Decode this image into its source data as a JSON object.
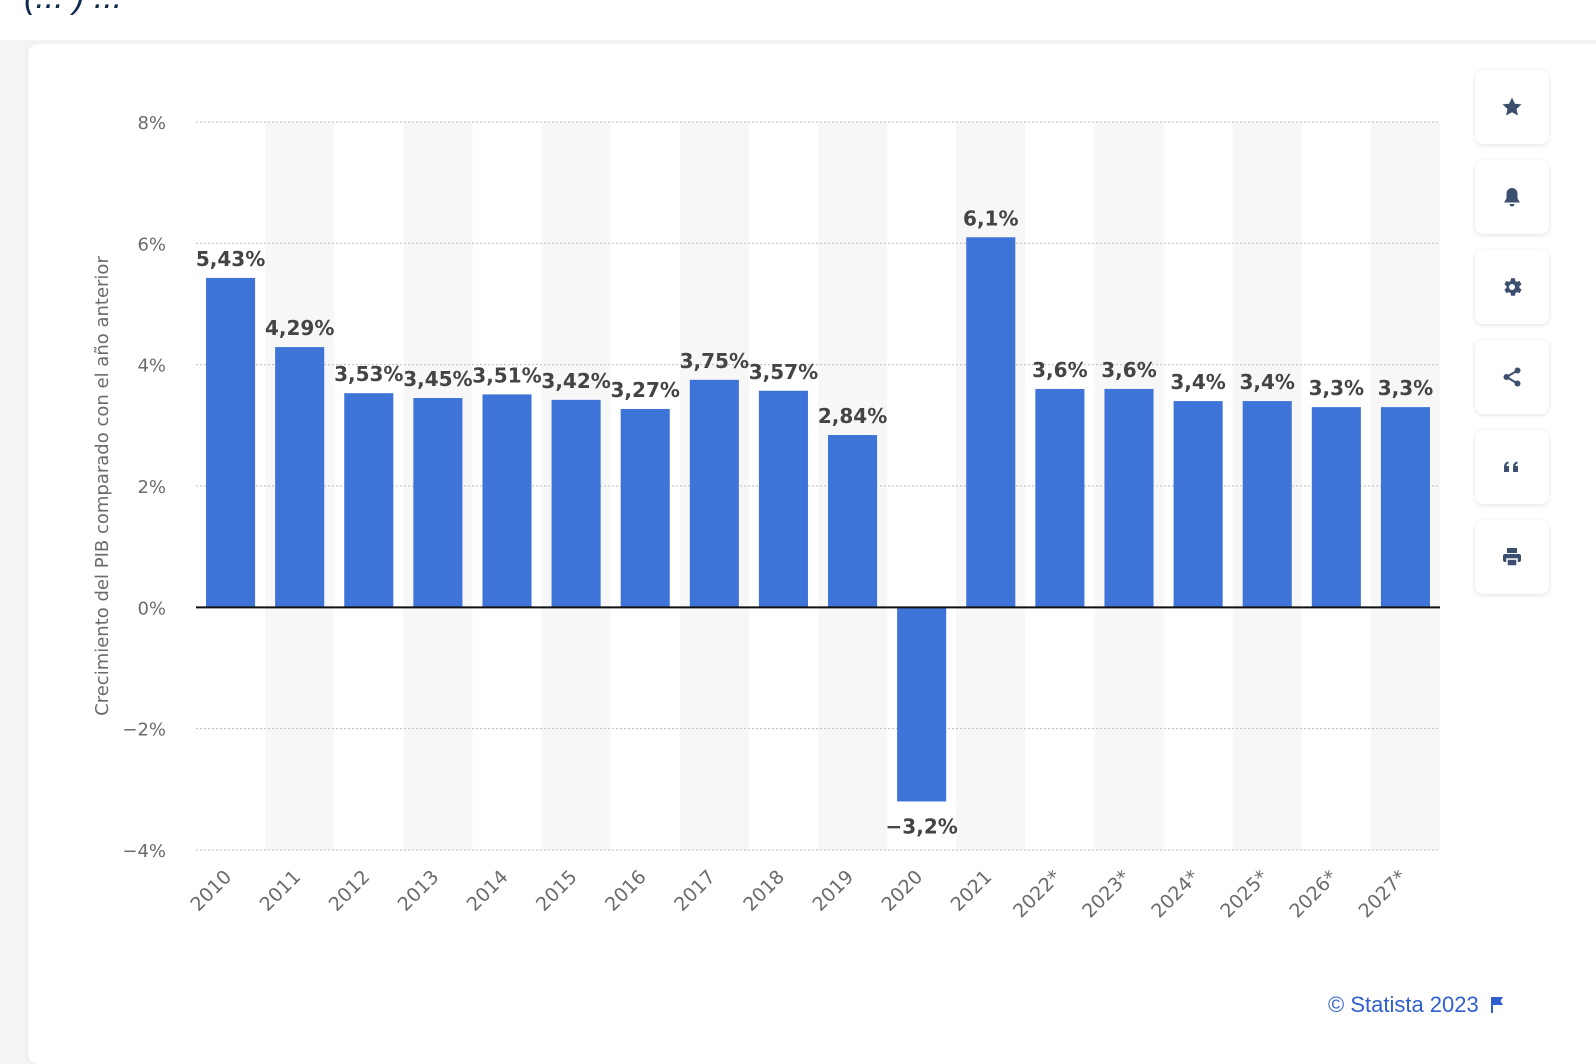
{
  "header": {
    "cut_title": "(... ) ..."
  },
  "chart_data": {
    "type": "bar",
    "categories": [
      "2010",
      "2011",
      "2012",
      "2013",
      "2014",
      "2015",
      "2016",
      "2017",
      "2018",
      "2019",
      "2020",
      "2021",
      "2022*",
      "2023*",
      "2024*",
      "2025*",
      "2026*",
      "2027*"
    ],
    "values": [
      5.43,
      4.29,
      3.53,
      3.45,
      3.51,
      3.42,
      3.27,
      3.75,
      3.57,
      2.84,
      -3.2,
      6.1,
      3.6,
      3.6,
      3.4,
      3.4,
      3.3,
      3.3
    ],
    "value_labels": [
      "5,43%",
      "4,29%",
      "3,53%",
      "3,45%",
      "3,51%",
      "3,42%",
      "3,27%",
      "3,75%",
      "3,57%",
      "2,84%",
      "−3,2%",
      "6,1%",
      "3,6%",
      "3,6%",
      "3,4%",
      "3,4%",
      "3,3%",
      "3,3%"
    ],
    "ylabel": "Crecimiento del PIB comparado con el año anterior",
    "xlabel": "",
    "ylim": [
      -4,
      8
    ],
    "yticks": [
      8,
      6,
      4,
      2,
      0,
      -2,
      -4
    ],
    "ytick_labels": [
      "8%",
      "6%",
      "4%",
      "2%",
      "0%",
      "−2%",
      "−4%"
    ],
    "grid": true,
    "bar_color": "#3e73d8",
    "alt_band_color": "#f7f7f7"
  },
  "toolbar": {
    "buttons": [
      {
        "icon": "star-icon"
      },
      {
        "icon": "bell-icon"
      },
      {
        "icon": "gear-icon"
      },
      {
        "icon": "share-icon"
      },
      {
        "icon": "quote-icon"
      },
      {
        "icon": "print-icon"
      }
    ]
  },
  "footer": {
    "credit": "© Statista 2023"
  },
  "colors": {
    "accent": "#2f5fcf",
    "icon": "#3d4f6e"
  }
}
